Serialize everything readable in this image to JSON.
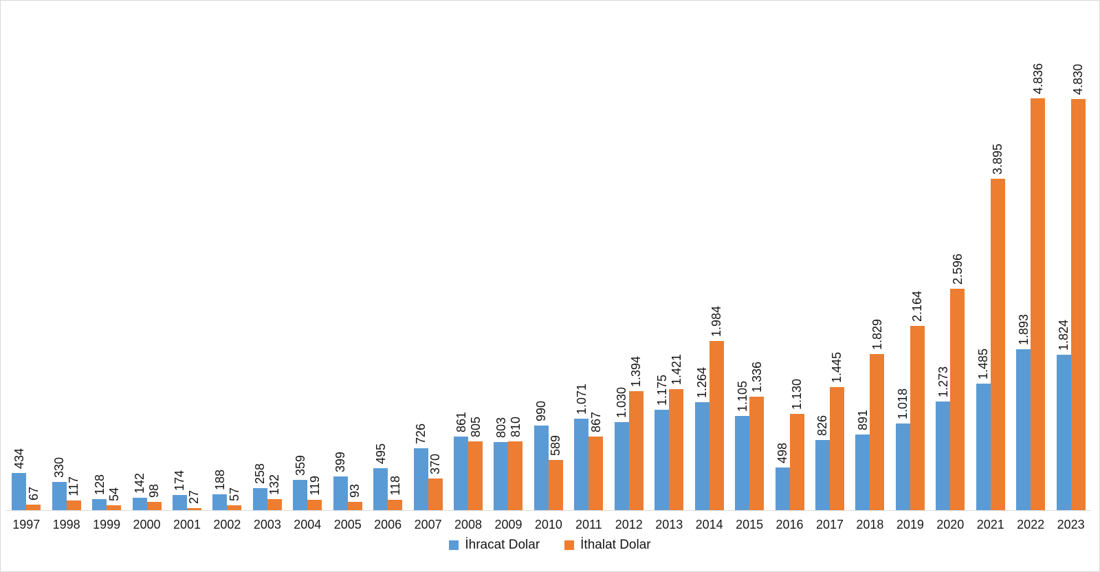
{
  "chart_data": {
    "type": "bar",
    "categories": [
      "1997",
      "1998",
      "1999",
      "2000",
      "2001",
      "2002",
      "2003",
      "2004",
      "2005",
      "2006",
      "2007",
      "2008",
      "2009",
      "2010",
      "2011",
      "2012",
      "2013",
      "2014",
      "2015",
      "2016",
      "2017",
      "2018",
      "2019",
      "2020",
      "2021",
      "2022",
      "2023"
    ],
    "series": [
      {
        "name": "İhracat Dolar",
        "color": "#5B9BD5",
        "values": [
          434,
          330,
          128,
          142,
          174,
          188,
          258,
          359,
          399,
          495,
          726,
          861,
          803,
          990,
          1071,
          1030,
          1175,
          1264,
          1105,
          498,
          826,
          891,
          1018,
          1273,
          1485,
          1893,
          1824
        ],
        "labels": [
          "434",
          "330",
          "128",
          "142",
          "174",
          "188",
          "258",
          "359",
          "399",
          "495",
          "726",
          "861",
          "803",
          "990",
          "1.071",
          "1.030",
          "1.175",
          "1.264",
          "1.105",
          "498",
          "826",
          "891",
          "1.018",
          "1.273",
          "1.485",
          "1.893",
          "1.824"
        ]
      },
      {
        "name": "İthalat Dolar",
        "color": "#ED7D31",
        "values": [
          67,
          117,
          54,
          98,
          27,
          57,
          132,
          119,
          93,
          118,
          370,
          805,
          810,
          589,
          867,
          1394,
          1421,
          1984,
          1336,
          1130,
          1445,
          1829,
          2164,
          2596,
          3895,
          4836,
          4830
        ],
        "labels": [
          "67",
          "117",
          "54",
          "98",
          "27",
          "57",
          "132",
          "119",
          "93",
          "118",
          "370",
          "805",
          "810",
          "589",
          "867",
          "1.394",
          "1.421",
          "1.984",
          "1.336",
          "1.130",
          "1.445",
          "1.829",
          "2.164",
          "2.596",
          "3.895",
          "4.836",
          "4.830"
        ]
      }
    ],
    "title": "",
    "xlabel": "",
    "ylabel": "",
    "ylim": [
      0,
      4836
    ],
    "grid": false,
    "value_axis_visible": false,
    "data_labels": "rotated-90-above-bars",
    "legend_position": "bottom",
    "axis_line_color": "#D9D9D9",
    "label_text_color": "#141414"
  }
}
